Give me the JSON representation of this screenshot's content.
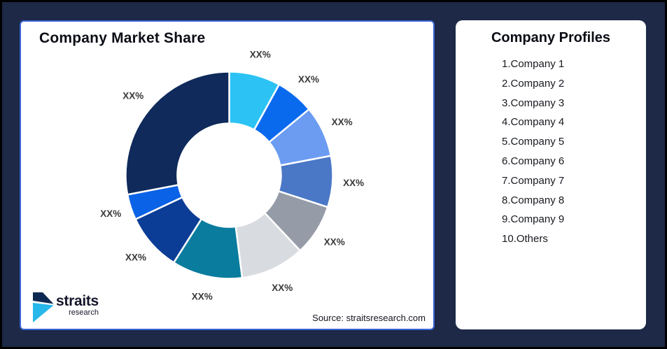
{
  "page": {
    "background_color": "#1D2946",
    "frame_border_color": "#000000"
  },
  "left_card": {
    "title": "Company Market Share",
    "source_note": "Source: straitsresearch.com",
    "accent_border_color": "#3B63D6",
    "logo": {
      "brand": "straits",
      "brand_sub": "research",
      "icon_navy": "#0F2A52",
      "icon_cyan": "#27B7EA"
    }
  },
  "right_card": {
    "title": "Company Profiles",
    "items": [
      "1.Company 1",
      "2.Company 2",
      "3.Company 3",
      "4.Company 4",
      "5.Company 5",
      "6.Company 6",
      "7.Company 7",
      "8.Company 8",
      "9.Company 9",
      "10.Others"
    ]
  },
  "chart_data": {
    "type": "pie",
    "variant": "donut",
    "title": "Company Market Share",
    "donut_hole_ratio": 0.5,
    "start_angle_deg": 0,
    "direction": "clockwise",
    "data_labels": "outside",
    "values_are_estimates_from_arc_angles": true,
    "label_color": "#3A3A3A",
    "separator_color": "#FFFFFF",
    "segments": [
      {
        "label": "XX%",
        "value": 8,
        "color": "#2CC3F4"
      },
      {
        "label": "XX%",
        "value": 6,
        "color": "#0A6AEE"
      },
      {
        "label": "XX%",
        "value": 8,
        "color": "#6B9CF2"
      },
      {
        "label": "XX%",
        "value": 8,
        "color": "#4A77C6"
      },
      {
        "label": "XX%",
        "value": 8,
        "color": "#959CA8"
      },
      {
        "label": "XX%",
        "value": 10,
        "color": "#D8DBE0"
      },
      {
        "label": "XX%",
        "value": 11,
        "color": "#0A7C9E"
      },
      {
        "label": "XX%",
        "value": 9,
        "color": "#0C3D96"
      },
      {
        "label": "XX%",
        "value": 4,
        "color": "#0A62E6"
      },
      {
        "label": "XX%",
        "value": 28,
        "color": "#0F2A5B"
      }
    ]
  }
}
